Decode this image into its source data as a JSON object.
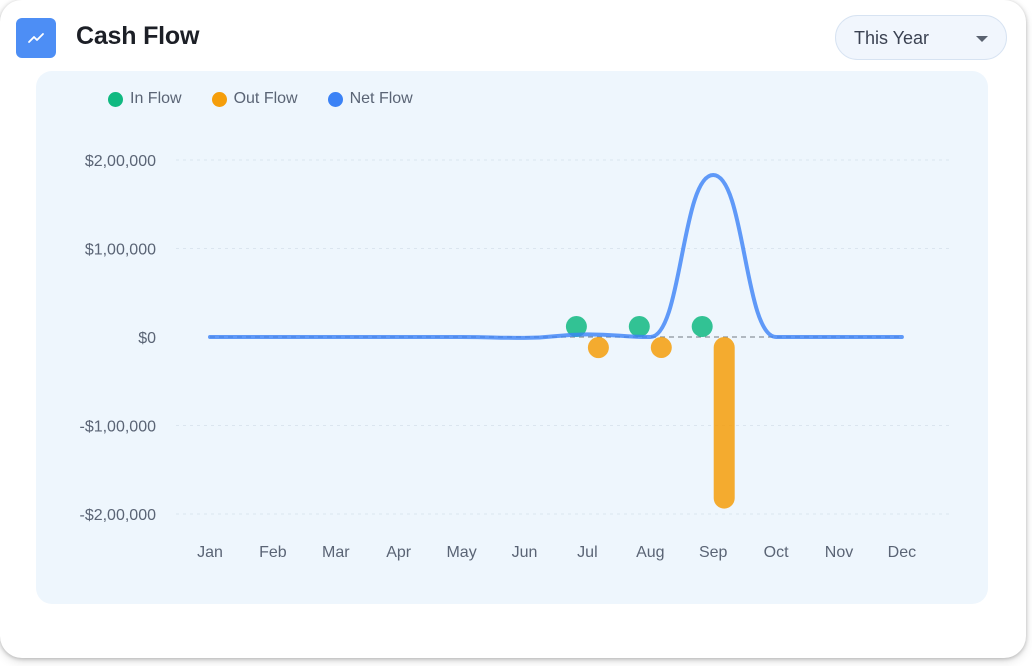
{
  "header": {
    "title": "Cash Flow",
    "icon": "trend-line-icon"
  },
  "period_select": {
    "value": "This Year",
    "icon": "caret-down-icon"
  },
  "colors": {
    "in_flow": "#10b981",
    "out_flow": "#f59e0b",
    "net_flow": "#3b82f6",
    "accent": "#4d8ef5"
  },
  "chart_data": {
    "type": "bar",
    "title": "",
    "xlabel": "",
    "ylabel": "",
    "categories": [
      "Jan",
      "Feb",
      "Mar",
      "Apr",
      "May",
      "Jun",
      "Jul",
      "Aug",
      "Sep",
      "Oct",
      "Nov",
      "Dec"
    ],
    "series": [
      {
        "name": "In Flow",
        "type": "bar",
        "color": "#10b981",
        "values": [
          0,
          0,
          0,
          0,
          0,
          0,
          8000,
          1500,
          1500,
          0,
          0,
          0
        ]
      },
      {
        "name": "Out Flow",
        "type": "bar",
        "color": "#f59e0b",
        "values": [
          0,
          0,
          0,
          0,
          0,
          0,
          -12000,
          -3000,
          -182000,
          0,
          0,
          0
        ]
      },
      {
        "name": "Net Flow",
        "type": "line",
        "color": "#3b82f6",
        "values": [
          0,
          0,
          0,
          0,
          0,
          -1000,
          3000,
          0,
          183000,
          0,
          0,
          0
        ]
      }
    ],
    "ylim": [
      -200000,
      200000
    ],
    "yticks": [
      200000,
      100000,
      0,
      -100000,
      -200000
    ],
    "ytick_labels": [
      "$2,00,000",
      "$1,00,000",
      "$0",
      "-$1,00,000",
      "-$2,00,000"
    ],
    "grid": true,
    "legend": "top-left"
  }
}
